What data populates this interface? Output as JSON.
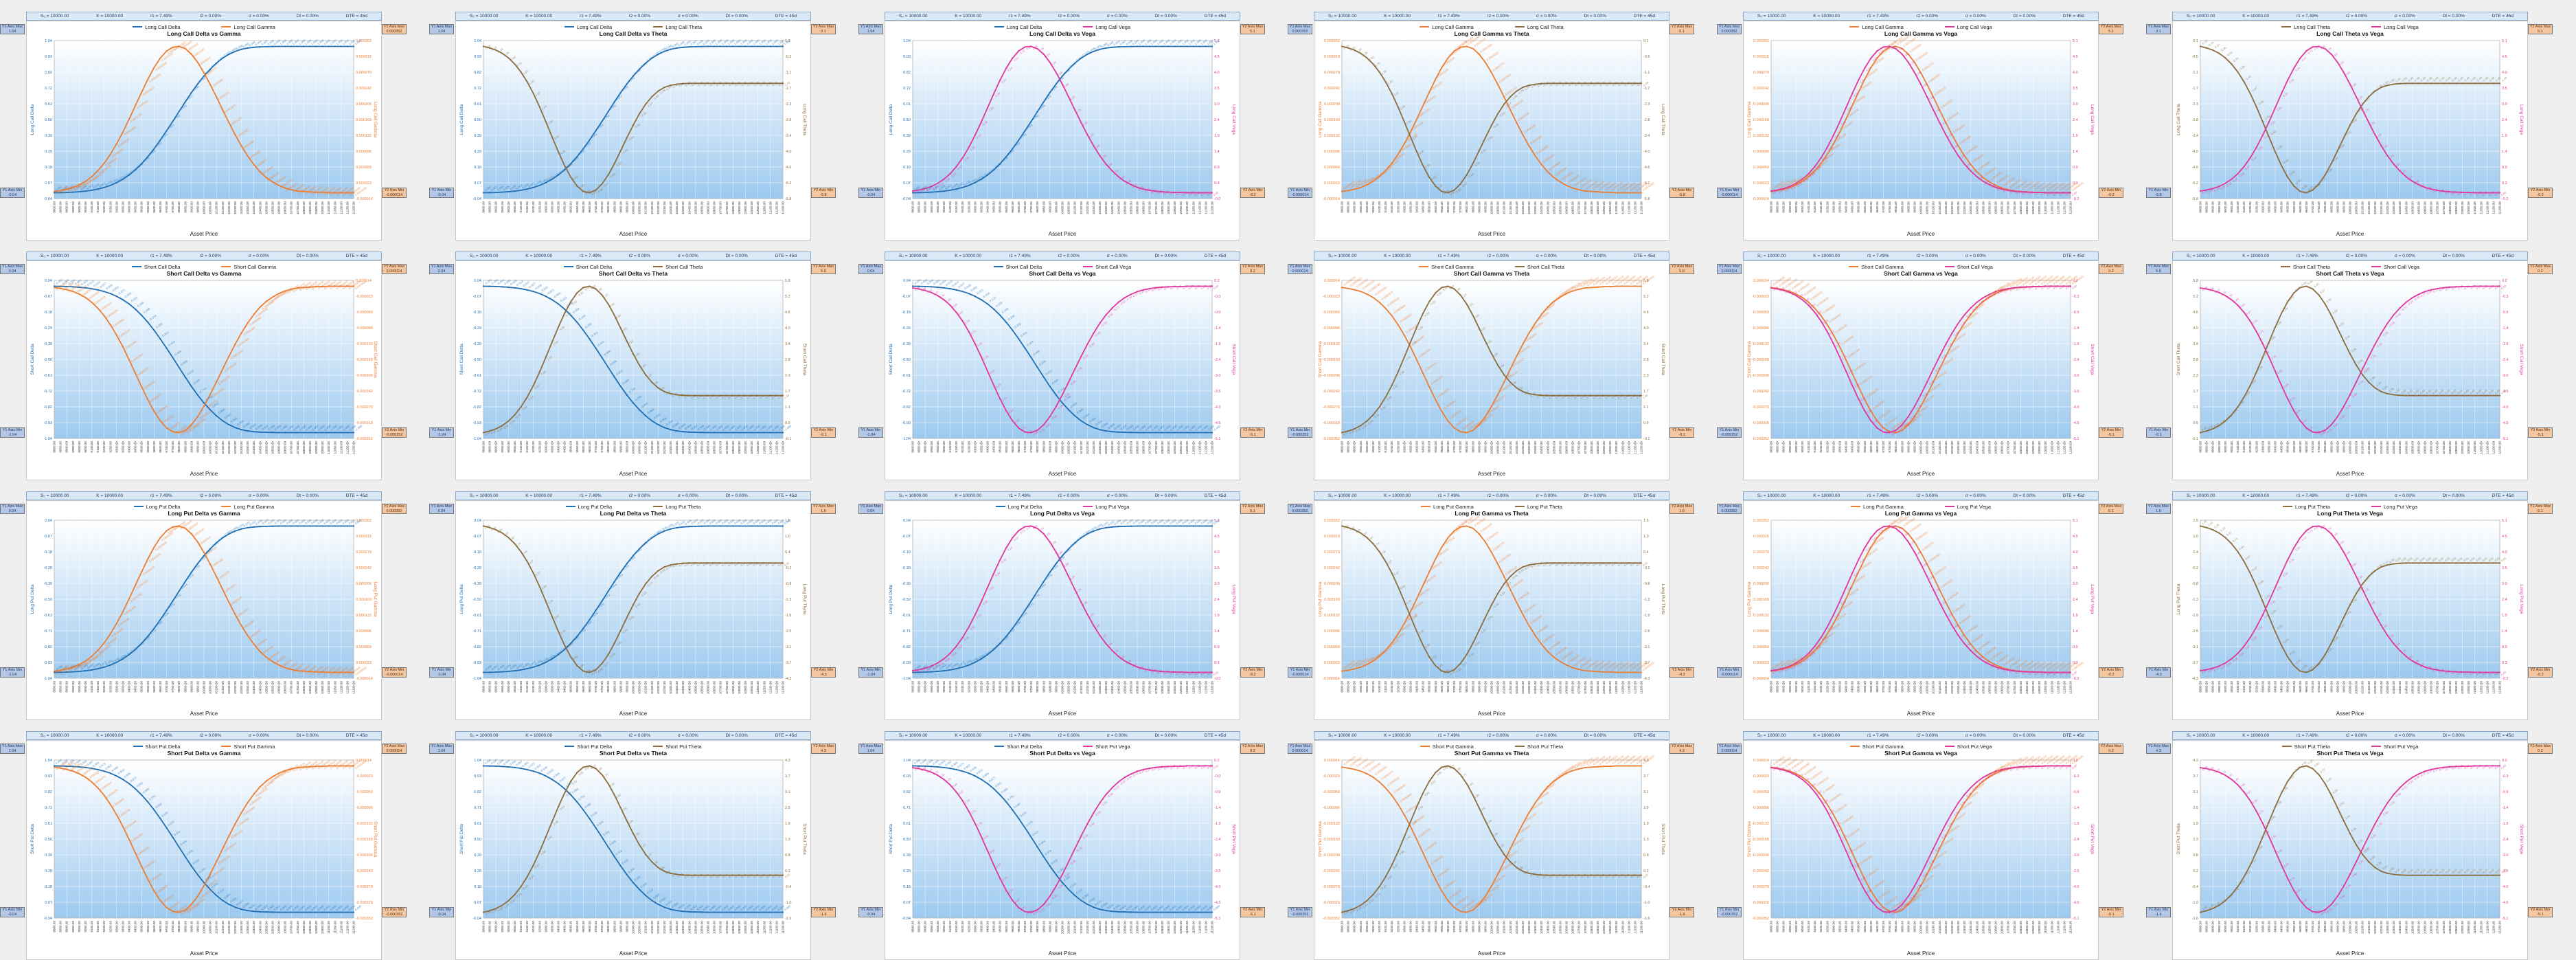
{
  "params": [
    "S₀ = 10000.00",
    "K = 10000.00",
    "r1 = 7.49%",
    "r2 = 0.00%",
    "σ = 0.00%",
    "Dt = 0.00%",
    "DTE = 45d"
  ],
  "boxes": {
    "y1max": "Y1 Axis Max",
    "y1min": "Y1 Axis Min",
    "y2max": "Y2 Axis Max",
    "y2min": "Y2 Axis Min"
  },
  "xlabel": "Asset Price",
  "colors": {
    "Delta": "#1f6fb4",
    "Gamma": "#ed7d31",
    "Theta": "#8c6d3f",
    "Vega": "#e0389a"
  },
  "panels": [
    {
      "pos": "Long Call",
      "title": "Long Call Delta vs Gamma",
      "g1": "Delta",
      "g2": "Gamma",
      "y1": "Long Call Delta",
      "y2": "Long Call Gamma"
    },
    {
      "pos": "Long Call",
      "title": "Long Call Delta vs Theta",
      "g1": "Delta",
      "g2": "Theta",
      "y1": "Long Call Delta",
      "y2": "Long Call Theta"
    },
    {
      "pos": "Long Call",
      "title": "Long Call Delta vs Vega",
      "g1": "Delta",
      "g2": "Vega",
      "y1": "Long Call Delta",
      "y2": "Long Call Vega"
    },
    {
      "pos": "Long Call",
      "title": "Long Call Gamma vs Theta",
      "g1": "Gamma",
      "g2": "Theta",
      "y1": "Long Call Gamma",
      "y2": "Long Call Theta"
    },
    {
      "pos": "Long Call",
      "title": "Long Call Gamma vs Vega",
      "g1": "Gamma",
      "g2": "Vega",
      "y1": "Long Call Gamma",
      "y2": "Long Call Vega"
    },
    {
      "pos": "Long Call",
      "title": "Long Call Theta vs Vega",
      "g1": "Theta",
      "g2": "Vega",
      "y1": "Long Call Theta",
      "y2": "Long Call Vega"
    },
    {
      "pos": "Short Call",
      "title": "Short Call Delta vs Gamma",
      "g1": "Delta",
      "g2": "Gamma",
      "y1": "Short Call Delta",
      "y2": "Short Call Gamma"
    },
    {
      "pos": "Short Call",
      "title": "Short Call Delta vs Theta",
      "g1": "Delta",
      "g2": "Theta",
      "y1": "Short Call Delta",
      "y2": "Short Call Theta"
    },
    {
      "pos": "Short Call",
      "title": "Short Call Delta vs Vega",
      "g1": "Delta",
      "g2": "Vega",
      "y1": "Short Call Delta",
      "y2": "Short Call Vega"
    },
    {
      "pos": "Short Call",
      "title": "Short Call Gamma vs Theta",
      "g1": "Gamma",
      "g2": "Theta",
      "y1": "Short Call Gamma",
      "y2": "Short Call Theta"
    },
    {
      "pos": "Short Call",
      "title": "Short Call Gamma vs Vega",
      "g1": "Gamma",
      "g2": "Vega",
      "y1": "Short Call Gamma",
      "y2": "Short Call Vega"
    },
    {
      "pos": "Short Call",
      "title": "Short Call Theta vs Vega",
      "g1": "Theta",
      "g2": "Vega",
      "y1": "Short Call Theta",
      "y2": "Short Call Vega"
    },
    {
      "pos": "Long Put",
      "title": "Long Put Delta vs Gamma",
      "g1": "Delta",
      "g2": "Gamma",
      "y1": "Long Put Delta",
      "y2": "Long Put Gamma"
    },
    {
      "pos": "Long Put",
      "title": "Long Put Delta vs Theta",
      "g1": "Delta",
      "g2": "Theta",
      "y1": "Long Put Delta",
      "y2": "Long Put Theta"
    },
    {
      "pos": "Long Put",
      "title": "Long Put Delta vs Vega",
      "g1": "Delta",
      "g2": "Vega",
      "y1": "Long Put Delta",
      "y2": "Long Put Vega"
    },
    {
      "pos": "Long Put",
      "title": "Long Put Gamma vs Theta",
      "g1": "Gamma",
      "g2": "Theta",
      "y1": "Long Put Gamma",
      "y2": "Long Put Theta"
    },
    {
      "pos": "Long Put",
      "title": "Long Put Gamma vs Vega",
      "g1": "Gamma",
      "g2": "Vega",
      "y1": "Long Put Gamma",
      "y2": "Long Put Vega"
    },
    {
      "pos": "Long Put",
      "title": "Long Put Theta vs Vega",
      "g1": "Theta",
      "g2": "Vega",
      "y1": "Long Put Theta",
      "y2": "Long Put Vega"
    },
    {
      "pos": "Short Put",
      "title": "Short Put Delta vs Gamma",
      "g1": "Delta",
      "g2": "Gamma",
      "y1": "Short Put Delta",
      "y2": "Short Put Gamma"
    },
    {
      "pos": "Short Put",
      "title": "Short Put Delta vs Theta",
      "g1": "Delta",
      "g2": "Theta",
      "y1": "Short Put Delta",
      "y2": "Short Put Theta"
    },
    {
      "pos": "Short Put",
      "title": "Short Put Delta vs Vega",
      "g1": "Delta",
      "g2": "Vega",
      "y1": "Short Put Delta",
      "y2": "Short Put Vega"
    },
    {
      "pos": "Short Put",
      "title": "Short Put Gamma vs Theta",
      "g1": "Gamma",
      "g2": "Theta",
      "y1": "Short Put Gamma",
      "y2": "Short Put Theta"
    },
    {
      "pos": "Short Put",
      "title": "Short Put Gamma vs Vega",
      "g1": "Gamma",
      "g2": "Vega",
      "y1": "Short Put Gamma",
      "y2": "Short Put Vega"
    },
    {
      "pos": "Short Put",
      "title": "Short Put Theta vs Vega",
      "g1": "Theta",
      "g2": "Vega",
      "y1": "Short Put Theta",
      "y2": "Short Put Vega"
    }
  ],
  "chart_data": {
    "type": "line",
    "x": [
      8800,
      8850,
      8900,
      8950,
      9000,
      9050,
      9100,
      9150,
      9200,
      9250,
      9300,
      9350,
      9400,
      9450,
      9500,
      9550,
      9600,
      9650,
      9700,
      9750,
      9800,
      9850,
      9900,
      9950,
      10000,
      10050,
      10100,
      10150,
      10200,
      10250,
      10300,
      10350,
      10400,
      10450,
      10500,
      10550,
      10600,
      10650,
      10700,
      10750,
      10800,
      10850,
      10900,
      10950,
      11000,
      11050,
      11100,
      11150,
      11200
    ],
    "curves": {
      "Long Call": {
        "Delta": [
          0.002,
          0.003,
          0.004,
          0.006,
          0.009,
          0.013,
          0.019,
          0.027,
          0.038,
          0.052,
          0.071,
          0.094,
          0.123,
          0.158,
          0.2,
          0.248,
          0.302,
          0.361,
          0.424,
          0.489,
          0.556,
          0.622,
          0.685,
          0.744,
          0.798,
          0.845,
          0.886,
          0.92,
          0.946,
          0.966,
          0.98,
          0.989,
          0.994,
          0.997,
          0.998,
          0.999,
          1,
          1,
          1,
          1,
          1,
          1,
          1,
          1,
          1,
          1,
          1,
          1,
          1
        ],
        "Gamma": [
          3e-06,
          5e-06,
          8e-06,
          1.2e-05,
          1.8e-05,
          2.6e-05,
          3.7e-05,
          5.1e-05,
          6.8e-05,
          8.9e-05,
          0.000113,
          0.00014,
          0.00017,
          0.000201,
          0.000232,
          0.000262,
          0.000289,
          0.000311,
          0.000327,
          0.000336,
          0.000338,
          0.000333,
          0.00032,
          0.000301,
          0.000277,
          0.00025,
          0.000221,
          0.000191,
          0.000162,
          0.000134,
          0.000108,
          8.5e-05,
          6.5e-05,
          4.8e-05,
          3.5e-05,
          2.5e-05,
          1.7e-05,
          1.1e-05,
          7e-06,
          4e-06,
          3e-06,
          2e-06,
          1e-06,
          1e-06,
          0,
          0,
          0,
          0,
          0
        ],
        "Theta": [
          -0.1,
          -0.16,
          -0.24,
          -0.36,
          -0.53,
          -0.76,
          -1.06,
          -1.43,
          -1.87,
          -2.38,
          -2.93,
          -3.5,
          -4.06,
          -4.58,
          -5.02,
          -5.35,
          -5.55,
          -5.6,
          -5.5,
          -5.27,
          -4.93,
          -4.5,
          -4.02,
          -3.53,
          -3.06,
          -2.63,
          -2.27,
          -1.99,
          -1.78,
          -1.64,
          -1.56,
          -1.52,
          -1.5,
          -1.49,
          -1.49,
          -1.49,
          -1.49,
          -1.49,
          -1.49,
          -1.49,
          -1.49,
          -1.49,
          -1.49,
          -1.49,
          -1.49,
          -1.49,
          -1.49,
          -1.49,
          -1.49
        ],
        "Vega": [
          0.06,
          0.09,
          0.14,
          0.21,
          0.31,
          0.45,
          0.63,
          0.87,
          1.16,
          1.51,
          1.91,
          2.35,
          2.82,
          3.29,
          3.74,
          4.14,
          4.47,
          4.71,
          4.84,
          4.86,
          4.78,
          4.6,
          4.33,
          3.99,
          3.6,
          3.18,
          2.75,
          2.33,
          1.93,
          1.56,
          1.23,
          0.95,
          0.72,
          0.53,
          0.38,
          0.27,
          0.18,
          0.12,
          0.08,
          0.05,
          0.03,
          0.02,
          0.01,
          0.01,
          0,
          0,
          0,
          0,
          0
        ]
      },
      "Short Call": {
        "Delta": [
          -0.002,
          -0.003,
          -0.004,
          -0.006,
          -0.009,
          -0.013,
          -0.019,
          -0.027,
          -0.038,
          -0.052,
          -0.071,
          -0.094,
          -0.123,
          -0.158,
          -0.2,
          -0.248,
          -0.302,
          -0.361,
          -0.424,
          -0.489,
          -0.556,
          -0.622,
          -0.685,
          -0.744,
          -0.798,
          -0.845,
          -0.886,
          -0.92,
          -0.946,
          -0.966,
          -0.98,
          -0.989,
          -0.994,
          -0.997,
          -0.998,
          -0.999,
          -1,
          -1,
          -1,
          -1,
          -1,
          -1,
          -1,
          -1,
          -1,
          -1,
          -1,
          -1,
          -1
        ],
        "Gamma": [
          -3e-06,
          -5e-06,
          -8e-06,
          -1.2e-05,
          -1.8e-05,
          -2.6e-05,
          -3.7e-05,
          -5.1e-05,
          -6.8e-05,
          -8.9e-05,
          -0.000113,
          -0.00014,
          -0.00017,
          -0.000201,
          -0.000232,
          -0.000262,
          -0.000289,
          -0.000311,
          -0.000327,
          -0.000336,
          -0.000338,
          -0.000333,
          -0.00032,
          -0.000301,
          -0.000277,
          -0.00025,
          -0.000221,
          -0.000191,
          -0.000162,
          -0.000134,
          -0.000108,
          -8.5e-05,
          -6.5e-05,
          -4.8e-05,
          -3.5e-05,
          -2.5e-05,
          -1.7e-05,
          -1.1e-05,
          -7e-06,
          -4e-06,
          -3e-06,
          -2e-06,
          -1e-06,
          -1e-06,
          0,
          0,
          0,
          0,
          0
        ],
        "Theta": [
          0.1,
          0.16,
          0.24,
          0.36,
          0.53,
          0.76,
          1.06,
          1.43,
          1.87,
          2.38,
          2.93,
          3.5,
          4.06,
          4.58,
          5.02,
          5.35,
          5.55,
          5.6,
          5.5,
          5.27,
          4.93,
          4.5,
          4.02,
          3.53,
          3.06,
          2.63,
          2.27,
          1.99,
          1.78,
          1.64,
          1.56,
          1.52,
          1.5,
          1.49,
          1.49,
          1.49,
          1.49,
          1.49,
          1.49,
          1.49,
          1.49,
          1.49,
          1.49,
          1.49,
          1.49,
          1.49,
          1.49,
          1.49,
          1.49
        ],
        "Vega": [
          -0.06,
          -0.09,
          -0.14,
          -0.21,
          -0.31,
          -0.45,
          -0.63,
          -0.87,
          -1.16,
          -1.51,
          -1.91,
          -2.35,
          -2.82,
          -3.29,
          -3.74,
          -4.14,
          -4.47,
          -4.71,
          -4.84,
          -4.86,
          -4.78,
          -4.6,
          -4.33,
          -3.99,
          -3.6,
          -3.18,
          -2.75,
          -2.33,
          -1.93,
          -1.56,
          -1.23,
          -0.95,
          -0.72,
          -0.53,
          -0.38,
          -0.27,
          -0.18,
          -0.12,
          -0.08,
          -0.05,
          -0.03,
          -0.02,
          -0.01,
          -0.01,
          0,
          0,
          0,
          0,
          0
        ]
      },
      "Long Put": {
        "Delta": [
          -0.998,
          -0.997,
          -0.996,
          -0.994,
          -0.991,
          -0.987,
          -0.981,
          -0.973,
          -0.962,
          -0.948,
          -0.929,
          -0.906,
          -0.877,
          -0.842,
          -0.8,
          -0.752,
          -0.698,
          -0.639,
          -0.576,
          -0.511,
          -0.444,
          -0.378,
          -0.315,
          -0.256,
          -0.202,
          -0.155,
          -0.114,
          -0.08,
          -0.054,
          -0.034,
          -0.02,
          -0.011,
          -0.006,
          -0.003,
          -0.002,
          -0.001,
          0,
          0,
          0,
          0,
          0,
          0,
          0,
          0,
          0,
          0,
          0,
          0,
          0
        ],
        "Gamma": [
          3e-06,
          5e-06,
          8e-06,
          1.2e-05,
          1.8e-05,
          2.6e-05,
          3.7e-05,
          5.1e-05,
          6.8e-05,
          8.9e-05,
          0.000113,
          0.00014,
          0.00017,
          0.000201,
          0.000232,
          0.000262,
          0.000289,
          0.000311,
          0.000327,
          0.000336,
          0.000338,
          0.000333,
          0.00032,
          0.000301,
          0.000277,
          0.00025,
          0.000221,
          0.000191,
          0.000162,
          0.000134,
          0.000108,
          8.5e-05,
          6.5e-05,
          4.8e-05,
          3.5e-05,
          2.5e-05,
          1.7e-05,
          1.1e-05,
          7e-06,
          4e-06,
          3e-06,
          2e-06,
          1e-06,
          1e-06,
          0,
          0,
          0,
          0,
          0
        ],
        "Theta": [
          1.4,
          1.34,
          1.26,
          1.14,
          0.97,
          0.74,
          0.44,
          0.07,
          -0.37,
          -0.88,
          -1.43,
          -2,
          -2.56,
          -3.08,
          -3.52,
          -3.85,
          -4.05,
          -4.1,
          -4,
          -3.77,
          -3.43,
          -3,
          -2.52,
          -2.03,
          -1.56,
          -1.13,
          -0.77,
          -0.49,
          -0.28,
          -0.14,
          -0.06,
          -0.02,
          0,
          0.01,
          0.01,
          0.01,
          0.01,
          0.01,
          0.01,
          0.01,
          0.01,
          0.01,
          0.01,
          0.01,
          0.01,
          0.01,
          0.01,
          0.01,
          0.01
        ],
        "Vega": [
          0.06,
          0.09,
          0.14,
          0.21,
          0.31,
          0.45,
          0.63,
          0.87,
          1.16,
          1.51,
          1.91,
          2.35,
          2.82,
          3.29,
          3.74,
          4.14,
          4.47,
          4.71,
          4.84,
          4.86,
          4.78,
          4.6,
          4.33,
          3.99,
          3.6,
          3.18,
          2.75,
          2.33,
          1.93,
          1.56,
          1.23,
          0.95,
          0.72,
          0.53,
          0.38,
          0.27,
          0.18,
          0.12,
          0.08,
          0.05,
          0.03,
          0.02,
          0.01,
          0.01,
          0,
          0,
          0,
          0,
          0
        ]
      },
      "Short Put": {
        "Delta": [
          0.998,
          0.997,
          0.996,
          0.994,
          0.991,
          0.987,
          0.981,
          0.973,
          0.962,
          0.948,
          0.929,
          0.906,
          0.877,
          0.842,
          0.8,
          0.752,
          0.698,
          0.639,
          0.576,
          0.511,
          0.444,
          0.378,
          0.315,
          0.256,
          0.202,
          0.155,
          0.114,
          0.08,
          0.054,
          0.034,
          0.02,
          0.011,
          0.006,
          0.003,
          0.002,
          0.001,
          0,
          0,
          0,
          0,
          0,
          0,
          0,
          0,
          0,
          0,
          0,
          0,
          0
        ],
        "Gamma": [
          -3e-06,
          -5e-06,
          -8e-06,
          -1.2e-05,
          -1.8e-05,
          -2.6e-05,
          -3.7e-05,
          -5.1e-05,
          -6.8e-05,
          -8.9e-05,
          -0.000113,
          -0.00014,
          -0.00017,
          -0.000201,
          -0.000232,
          -0.000262,
          -0.000289,
          -0.000311,
          -0.000327,
          -0.000336,
          -0.000338,
          -0.000333,
          -0.00032,
          -0.000301,
          -0.000277,
          -0.00025,
          -0.000221,
          -0.000191,
          -0.000162,
          -0.000134,
          -0.000108,
          -8.5e-05,
          -6.5e-05,
          -4.8e-05,
          -3.5e-05,
          -2.5e-05,
          -1.7e-05,
          -1.1e-05,
          -7e-06,
          -4e-06,
          -3e-06,
          -2e-06,
          -1e-06,
          -1e-06,
          0,
          0,
          0,
          0,
          0
        ],
        "Theta": [
          -1.4,
          -1.34,
          -1.26,
          -1.14,
          -0.97,
          -0.74,
          -0.44,
          -0.07,
          0.37,
          0.88,
          1.43,
          2,
          2.56,
          3.08,
          3.52,
          3.85,
          4.05,
          4.1,
          4,
          3.77,
          3.43,
          3,
          2.52,
          2.03,
          1.56,
          1.13,
          0.77,
          0.49,
          0.28,
          0.14,
          0.06,
          0.02,
          0,
          -0.01,
          -0.01,
          -0.01,
          -0.01,
          -0.01,
          -0.01,
          -0.01,
          -0.01,
          -0.01,
          -0.01,
          -0.01,
          -0.01,
          -0.01,
          -0.01,
          -0.01,
          -0.01
        ],
        "Vega": [
          -0.06,
          -0.09,
          -0.14,
          -0.21,
          -0.31,
          -0.45,
          -0.63,
          -0.87,
          -1.16,
          -1.51,
          -1.91,
          -2.35,
          -2.82,
          -3.29,
          -3.74,
          -4.14,
          -4.47,
          -4.71,
          -4.84,
          -4.86,
          -4.78,
          -4.6,
          -4.33,
          -3.99,
          -3.6,
          -3.18,
          -2.75,
          -2.33,
          -1.93,
          -1.56,
          -1.23,
          -0.95,
          -0.72,
          -0.53,
          -0.38,
          -0.27,
          -0.18,
          -0.12,
          -0.08,
          -0.05,
          -0.03,
          -0.02,
          -0.01,
          -0.01,
          0,
          0,
          0,
          0,
          0
        ]
      }
    }
  }
}
